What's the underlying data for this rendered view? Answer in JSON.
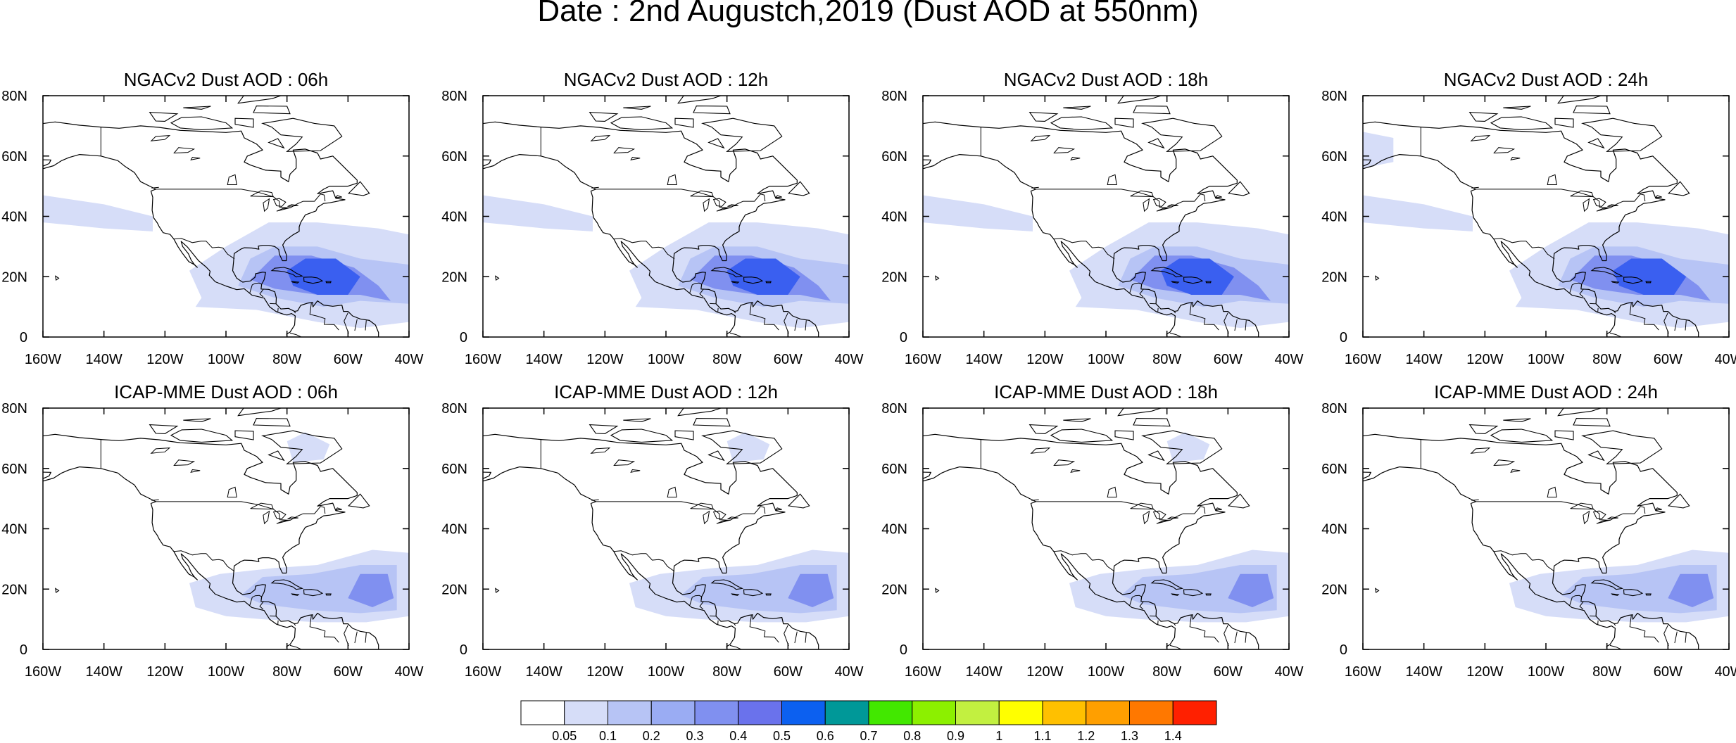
{
  "figure": {
    "title": "Date : 2nd Augustch,2019 (Dust AOD at 550nm)"
  },
  "panels": [
    {
      "title": "NGACv2 Dust AOD : 06h",
      "model": "NGACv2",
      "forecast_hour": "06h"
    },
    {
      "title": "NGACv2 Dust AOD : 12h",
      "model": "NGACv2",
      "forecast_hour": "12h"
    },
    {
      "title": "NGACv2 Dust AOD : 18h",
      "model": "NGACv2",
      "forecast_hour": "18h"
    },
    {
      "title": "NGACv2 Dust AOD : 24h",
      "model": "NGACv2",
      "forecast_hour": "24h"
    },
    {
      "title": "ICAP-MME Dust AOD : 06h",
      "model": "ICAP-MME",
      "forecast_hour": "06h"
    },
    {
      "title": "ICAP-MME Dust AOD : 12h",
      "model": "ICAP-MME",
      "forecast_hour": "12h"
    },
    {
      "title": "ICAP-MME Dust AOD : 18h",
      "model": "ICAP-MME",
      "forecast_hour": "18h"
    },
    {
      "title": "ICAP-MME Dust AOD : 24h",
      "model": "ICAP-MME",
      "forecast_hour": "24h"
    }
  ],
  "map": {
    "lon_range": [
      -160,
      -40
    ],
    "lat_range": [
      0,
      80
    ],
    "lon_ticks": [
      "160W",
      "140W",
      "120W",
      "100W",
      "80W",
      "60W",
      "40W"
    ],
    "lat_ticks": [
      "80N",
      "60N",
      "40N",
      "20N",
      "0"
    ]
  },
  "colorbar": {
    "labels": [
      "0.05",
      "0.1",
      "0.2",
      "0.3",
      "0.4",
      "0.5",
      "0.6",
      "0.7",
      "0.8",
      "0.9",
      "1",
      "1.1",
      "1.2",
      "1.3",
      "1.4"
    ],
    "colors": [
      "#ffffff",
      "#d6ddf8",
      "#b7c4f5",
      "#9aacf3",
      "#8090f0",
      "#6a72ec",
      "#0c60f0",
      "#009898",
      "#42e800",
      "#8cf000",
      "#c2f040",
      "#ffff00",
      "#ffc000",
      "#ff9f00",
      "#ff7800",
      "#ff2000"
    ]
  },
  "style": {
    "land_outline": "#000000",
    "dust_light": "#d6ddf8",
    "dust_medium": "#b7c4f5",
    "dust_strong": "#8090f0",
    "dust_peak": "#3a5ff0"
  }
}
